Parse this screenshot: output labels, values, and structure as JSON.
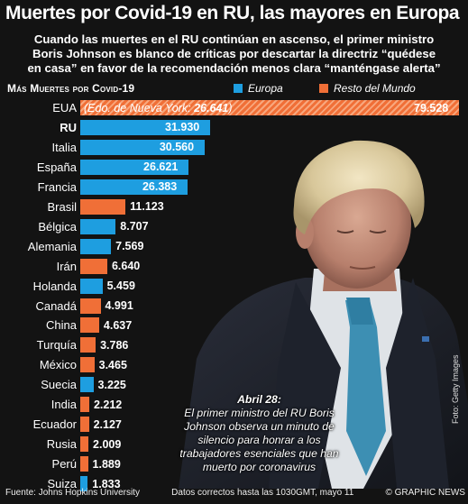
{
  "header": {
    "title": "Muertes por Covid-19 en RU, las mayores en Europa",
    "subtitle_lines": [
      "Cuando las muertes en el RU continúan en ascenso, el primer ministro",
      "Boris Johnson es blanco de críticas por descartar la directriz “quédese",
      "en casa” en favor de la recomendación menos clara “manténgase alerta”"
    ]
  },
  "chart_data": {
    "type": "bar",
    "title": "Más Muertes por Covid-19",
    "legend": [
      {
        "name": "Europa",
        "color": "#1e9ee0"
      },
      {
        "name": "Resto del Mundo",
        "color": "#f06f37"
      }
    ],
    "categories": [
      "EUA",
      "RU",
      "Italia",
      "España",
      "Francia",
      "Brasil",
      "Bélgica",
      "Alemania",
      "Irán",
      "Holanda",
      "Canadá",
      "China",
      "Turquía",
      "México",
      "Suecia",
      "India",
      "Ecuador",
      "Rusia",
      "Perú",
      "Suiza"
    ],
    "values": [
      79528,
      31930,
      30560,
      26621,
      26383,
      11123,
      8707,
      7569,
      6640,
      5459,
      4991,
      4637,
      3786,
      3465,
      3225,
      2212,
      2127,
      2009,
      1889,
      1833
    ],
    "value_labels": [
      "79.528",
      "31.930",
      "30.560",
      "26.621",
      "26.383",
      "11.123",
      "8.707",
      "7.569",
      "6.640",
      "5.459",
      "4.991",
      "4.637",
      "3.786",
      "3.465",
      "3.225",
      "2.212",
      "2.127",
      "2.009",
      "1.889",
      "1.833"
    ],
    "groups": [
      "rest",
      "eu",
      "eu",
      "eu",
      "eu",
      "rest",
      "eu",
      "eu",
      "rest",
      "eu",
      "rest",
      "rest",
      "rest",
      "rest",
      "eu",
      "rest",
      "rest",
      "rest",
      "rest",
      "eu"
    ],
    "annotation": {
      "text": "(Edo. de Nueva York: ",
      "value": "26.641",
      "close": ")"
    }
  },
  "caption": {
    "title": "Abril 28:",
    "text": "El primer ministro del RU Boris Johnson observa un minuto de silencio para honrar a los trabajadores esenciales que han muerto por coronavirus"
  },
  "photo_credit": "Foto: Getty Images",
  "footer": {
    "source": "Fuente: Johns Hopkins University",
    "date": "Datos correctos hasta las 1030GMT, mayo 11",
    "brand": "© GRAPHIC NEWS"
  },
  "colors": {
    "europe": "#1e9ee0",
    "rest": "#f06f37",
    "background": "#131313"
  }
}
